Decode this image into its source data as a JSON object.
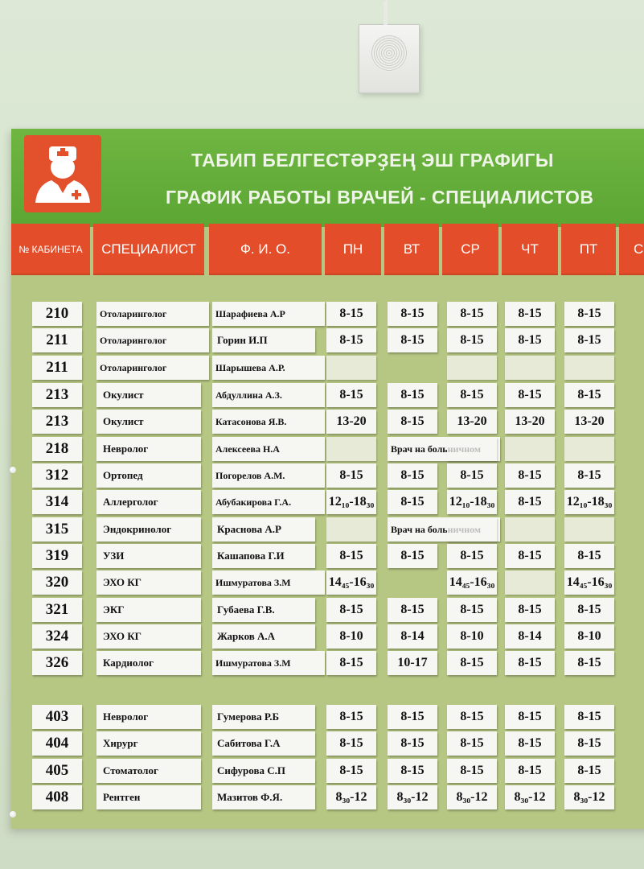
{
  "title_line1": "ТАБИП БЕЛГЕСТӘРҘЕҢ ЭШ ГРАФИГЫ",
  "title_line2": "ГРАФИК РАБОТЫ ВРАЧЕЙ - СПЕЦИАЛИСТОВ",
  "logo_icon": "doctor-icon",
  "colors": {
    "banner": "#5ca634",
    "header": "#e44d2a",
    "board": "#b6c783",
    "logo": "#e3512c"
  },
  "headers": {
    "room": "№ КАБИНЕТА",
    "specialist": "СПЕЦИАЛИСТ",
    "name": "Ф. И. О.",
    "mon": "ПН",
    "tue": "ВТ",
    "wed": "СР",
    "thu": "ЧТ",
    "fri": "ПТ",
    "sat": "С"
  },
  "rows": [
    {
      "room": "210",
      "specialist": "Отоларинголог",
      "name": "Шарафиева А.Р",
      "mon": "8-15",
      "tue": "8-15",
      "wed": "8-15",
      "thu": "8-15",
      "fri": "8-15"
    },
    {
      "room": "211",
      "specialist": "Отоларинголог",
      "name": "Горин И.П",
      "mon": "8-15",
      "tue": "8-15",
      "wed": "8-15",
      "thu": "8-15",
      "fri": "8-15"
    },
    {
      "room": "211",
      "specialist": "Отоларинголог",
      "name": "Шарышева А.Р.",
      "mon": "",
      "tue": "",
      "wed": "",
      "thu": "",
      "fri": ""
    },
    {
      "room": "213",
      "specialist": "Окулист",
      "name": "Абдуллина А.З.",
      "mon": "8-15",
      "tue": "8-15",
      "wed": "8-15",
      "thu": "8-15",
      "fri": "8-15"
    },
    {
      "room": "213",
      "specialist": "Окулист",
      "name": "Катасонова Я.В.",
      "mon": "13-20",
      "tue": "8-15",
      "wed": "13-20",
      "thu": "13-20",
      "fri": "13-20"
    },
    {
      "room": "218",
      "specialist": "Невролог",
      "name": "Алексеева Н.А",
      "mon": "",
      "tue": "Врач на больничном",
      "wed": "",
      "thu": "",
      "fri": ""
    },
    {
      "room": "312",
      "specialist": "Ортопед",
      "name": "Погорелов А.М.",
      "mon": "8-15",
      "tue": "8-15",
      "wed": "8-15",
      "thu": "8-15",
      "fri": "8-15"
    },
    {
      "room": "314",
      "specialist": "Аллерголог",
      "name": "Абубакирова Г.А.",
      "mon": "12₁₀-18₃₀",
      "tue": "8-15",
      "wed": "12₁₀-18₃₀",
      "thu": "8-15",
      "fri": "12₁₀-18₃₀"
    },
    {
      "room": "315",
      "specialist": "Эндокринолог",
      "name": "Краснова А.Р",
      "mon": "",
      "tue": "Врач на больничном",
      "wed": "",
      "thu": "",
      "fri": ""
    },
    {
      "room": "319",
      "specialist": "УЗИ",
      "name": "Кашапова Г.И",
      "mon": "8-15",
      "tue": "8-15",
      "wed": "8-15",
      "thu": "8-15",
      "fri": "8-15"
    },
    {
      "room": "320",
      "specialist": "ЭХО КГ",
      "name": "Ишмуратова З.М",
      "mon": "14₄₅-16₃₀",
      "tue": "",
      "wed": "14₄₅-16₃₀",
      "thu": "",
      "fri": "14₄₅-16₃₀"
    },
    {
      "room": "321",
      "specialist": "ЭКГ",
      "name": "Губаева Г.В.",
      "mon": "8-15",
      "tue": "8-15",
      "wed": "8-15",
      "thu": "8-15",
      "fri": "8-15"
    },
    {
      "room": "324",
      "specialist": "ЭХО КГ",
      "name": "Жарков А.А",
      "mon": "8-10",
      "tue": "8-14",
      "wed": "8-10",
      "thu": "8-14",
      "fri": "8-10"
    },
    {
      "room": "326",
      "specialist": "Кардиолог",
      "name": "Ишмуратова З.М",
      "mon": "8-15",
      "tue": "10-17",
      "wed": "8-15",
      "thu": "8-15",
      "fri": "8-15"
    },
    {
      "room": "403",
      "specialist": "Невролог",
      "name": "Гумерова Р.Б",
      "mon": "8-15",
      "tue": "8-15",
      "wed": "8-15",
      "thu": "8-15",
      "fri": "8-15"
    },
    {
      "room": "404",
      "specialist": "Хирург",
      "name": "Сабитова Г.А",
      "mon": "8-15",
      "tue": "8-15",
      "wed": "8-15",
      "thu": "8-15",
      "fri": "8-15"
    },
    {
      "room": "405",
      "specialist": "Стоматолог",
      "name": "Сифурова С.П",
      "mon": "8-15",
      "tue": "8-15",
      "wed": "8-15",
      "thu": "8-15",
      "fri": "8-15"
    },
    {
      "room": "408",
      "specialist": "Рентген",
      "name": "Мазитов Ф.Я.",
      "mon": "8₃₀-12",
      "tue": "8₃₀-12",
      "wed": "8₃₀-12",
      "thu": "8₃₀-12",
      "fri": "8₃₀-12"
    }
  ]
}
